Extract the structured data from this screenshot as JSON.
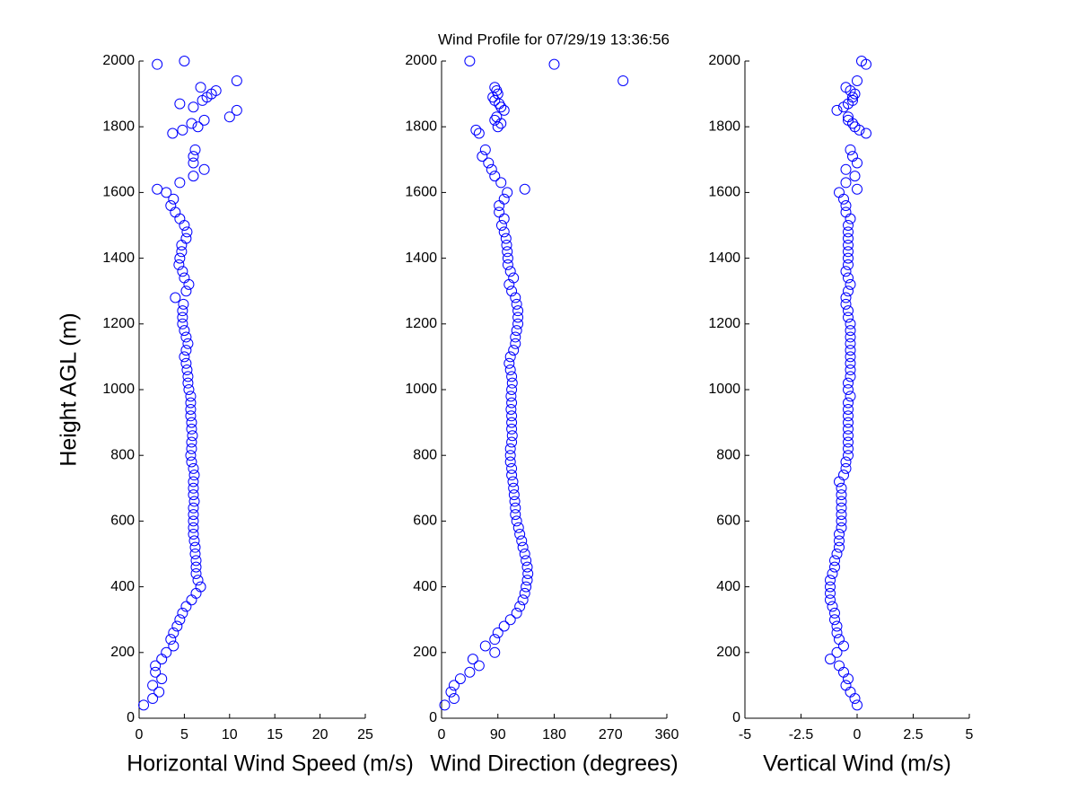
{
  "chart_data": [
    {
      "type": "scatter",
      "title": "Wind Profile for  07/29/19 13:36:56",
      "x_label": "Horizontal Wind Speed (m/s)",
      "y_label": "Height AGL (m)",
      "color": "#0000ff",
      "xlim": [
        0,
        25
      ],
      "xticks": [
        0,
        5,
        10,
        15,
        20,
        25
      ],
      "ylim": [
        0,
        2000
      ],
      "yticks": [
        0,
        200,
        400,
        600,
        800,
        1000,
        1200,
        1400,
        1600,
        1800,
        2000
      ],
      "y": [
        40,
        60,
        80,
        100,
        120,
        140,
        160,
        180,
        200,
        220,
        240,
        260,
        280,
        300,
        320,
        340,
        360,
        380,
        400,
        420,
        440,
        460,
        480,
        500,
        520,
        540,
        560,
        580,
        600,
        620,
        640,
        660,
        680,
        700,
        720,
        740,
        760,
        780,
        800,
        820,
        840,
        860,
        880,
        900,
        920,
        940,
        960,
        980,
        1000,
        1020,
        1040,
        1060,
        1080,
        1100,
        1120,
        1140,
        1160,
        1180,
        1200,
        1220,
        1240,
        1260,
        1280,
        1300,
        1320,
        1340,
        1360,
        1380,
        1400,
        1420,
        1440,
        1460,
        1480,
        1500,
        1520,
        1540,
        1560,
        1580,
        1600,
        1610,
        1630,
        1650,
        1670,
        1690,
        1710,
        1730,
        1780,
        1790,
        1800,
        1810,
        1820,
        1830,
        1850,
        1860,
        1870,
        1880,
        1890,
        1900,
        1910,
        1920,
        1940,
        1990,
        2000
      ],
      "x": [
        0.5,
        1.5,
        2.2,
        1.5,
        2.5,
        1.8,
        1.8,
        2.5,
        3.0,
        3.8,
        3.5,
        3.8,
        4.2,
        4.5,
        4.8,
        5.2,
        5.8,
        6.3,
        6.8,
        6.5,
        6.3,
        6.3,
        6.3,
        6.2,
        6.2,
        6.1,
        6.0,
        6.0,
        6.0,
        6.0,
        6.0,
        6.1,
        6.0,
        6.0,
        6.0,
        6.1,
        6.0,
        5.8,
        5.7,
        5.8,
        5.8,
        5.9,
        5.8,
        5.8,
        5.7,
        5.7,
        5.7,
        5.7,
        5.5,
        5.4,
        5.4,
        5.3,
        5.2,
        5.0,
        5.2,
        5.4,
        5.2,
        5.0,
        4.8,
        4.8,
        4.8,
        4.9,
        4.0,
        5.2,
        5.5,
        5.0,
        4.8,
        4.4,
        4.5,
        4.7,
        4.7,
        5.2,
        5.3,
        5.0,
        4.5,
        4.0,
        3.5,
        3.8,
        3.0,
        2.0,
        4.5,
        6.0,
        7.2,
        6.0,
        6.0,
        6.2,
        3.7,
        4.8,
        6.5,
        5.8,
        7.2,
        10.0,
        10.8,
        6.0,
        4.5,
        7.0,
        7.5,
        8.0,
        8.5,
        6.8,
        10.8,
        2.0,
        5.0
      ]
    },
    {
      "type": "scatter",
      "x_label": "Wind Direction (degrees)",
      "color": "#0000ff",
      "xlim": [
        0,
        360
      ],
      "xticks": [
        0,
        90,
        180,
        270,
        360
      ],
      "ylim": [
        0,
        2000
      ],
      "yticks": [
        0,
        200,
        400,
        600,
        800,
        1000,
        1200,
        1400,
        1600,
        1800,
        2000
      ],
      "y": [
        40,
        60,
        80,
        100,
        120,
        140,
        160,
        180,
        200,
        220,
        240,
        260,
        280,
        300,
        320,
        340,
        360,
        380,
        400,
        420,
        440,
        460,
        480,
        500,
        520,
        540,
        560,
        580,
        600,
        620,
        640,
        660,
        680,
        700,
        720,
        740,
        760,
        780,
        800,
        820,
        840,
        860,
        880,
        900,
        920,
        940,
        960,
        980,
        1000,
        1020,
        1040,
        1060,
        1080,
        1100,
        1120,
        1140,
        1160,
        1180,
        1200,
        1220,
        1240,
        1260,
        1280,
        1300,
        1320,
        1340,
        1360,
        1380,
        1400,
        1420,
        1440,
        1460,
        1480,
        1500,
        1520,
        1540,
        1560,
        1580,
        1600,
        1610,
        1630,
        1650,
        1670,
        1690,
        1710,
        1730,
        1780,
        1790,
        1800,
        1810,
        1820,
        1830,
        1850,
        1860,
        1870,
        1880,
        1890,
        1900,
        1910,
        1920,
        1940,
        1990,
        2000
      ],
      "x": [
        5,
        20,
        15,
        20,
        30,
        45,
        60,
        50,
        85,
        70,
        85,
        90,
        100,
        110,
        120,
        125,
        130,
        133,
        135,
        137,
        138,
        137,
        135,
        133,
        130,
        128,
        125,
        123,
        120,
        118,
        118,
        117,
        116,
        115,
        114,
        112,
        112,
        110,
        110,
        110,
        112,
        113,
        112,
        112,
        112,
        111,
        112,
        111,
        112,
        113,
        112,
        110,
        108,
        110,
        115,
        118,
        118,
        120,
        122,
        122,
        122,
        120,
        118,
        112,
        108,
        115,
        110,
        106,
        106,
        105,
        104,
        103,
        100,
        96,
        100,
        92,
        92,
        100,
        105,
        133,
        95,
        85,
        80,
        75,
        65,
        70,
        60,
        55,
        90,
        95,
        85,
        88,
        100,
        95,
        92,
        85,
        82,
        90,
        88,
        85,
        290,
        180,
        45
      ]
    },
    {
      "type": "scatter",
      "x_label": "Vertical Wind (m/s)",
      "color": "#0000ff",
      "xlim": [
        -5,
        5
      ],
      "xticks": [
        -5,
        -2.5,
        0,
        2.5,
        5
      ],
      "ylim": [
        0,
        2000
      ],
      "yticks": [
        0,
        200,
        400,
        600,
        800,
        1000,
        1200,
        1400,
        1600,
        1800,
        2000
      ],
      "y": [
        40,
        60,
        80,
        100,
        120,
        140,
        160,
        180,
        200,
        220,
        240,
        260,
        280,
        300,
        320,
        340,
        360,
        380,
        400,
        420,
        440,
        460,
        480,
        500,
        520,
        540,
        560,
        580,
        600,
        620,
        640,
        660,
        680,
        700,
        720,
        740,
        760,
        780,
        800,
        820,
        840,
        860,
        880,
        900,
        920,
        940,
        960,
        980,
        1000,
        1020,
        1040,
        1060,
        1080,
        1100,
        1120,
        1140,
        1160,
        1180,
        1200,
        1220,
        1240,
        1260,
        1280,
        1300,
        1320,
        1340,
        1360,
        1380,
        1400,
        1420,
        1440,
        1460,
        1480,
        1500,
        1520,
        1540,
        1560,
        1580,
        1600,
        1610,
        1630,
        1650,
        1670,
        1690,
        1710,
        1730,
        1780,
        1790,
        1800,
        1810,
        1820,
        1830,
        1850,
        1860,
        1870,
        1880,
        1890,
        1900,
        1910,
        1920,
        1940,
        1990,
        2000
      ],
      "x": [
        0,
        -0.1,
        -0.3,
        -0.5,
        -0.4,
        -0.6,
        -0.8,
        -1.2,
        -0.9,
        -0.6,
        -0.8,
        -0.9,
        -0.9,
        -1.0,
        -1.0,
        -1.1,
        -1.2,
        -1.2,
        -1.2,
        -1.2,
        -1.1,
        -1.0,
        -1.0,
        -0.9,
        -0.8,
        -0.8,
        -0.8,
        -0.7,
        -0.7,
        -0.7,
        -0.7,
        -0.7,
        -0.7,
        -0.7,
        -0.8,
        -0.6,
        -0.5,
        -0.5,
        -0.4,
        -0.4,
        -0.4,
        -0.4,
        -0.4,
        -0.4,
        -0.4,
        -0.4,
        -0.4,
        -0.3,
        -0.4,
        -0.4,
        -0.3,
        -0.3,
        -0.3,
        -0.3,
        -0.3,
        -0.3,
        -0.3,
        -0.3,
        -0.3,
        -0.4,
        -0.4,
        -0.5,
        -0.5,
        -0.4,
        -0.3,
        -0.4,
        -0.5,
        -0.4,
        -0.4,
        -0.4,
        -0.4,
        -0.4,
        -0.4,
        -0.4,
        -0.3,
        -0.5,
        -0.5,
        -0.6,
        -0.8,
        0,
        -0.5,
        -0.1,
        -0.5,
        0,
        -0.2,
        -0.3,
        0.4,
        0.1,
        -0.1,
        -0.2,
        -0.4,
        -0.4,
        -0.9,
        -0.6,
        -0.4,
        -0.2,
        -0.2,
        -0.1,
        -0.3,
        -0.5,
        0,
        0.4,
        0.2
      ]
    }
  ]
}
